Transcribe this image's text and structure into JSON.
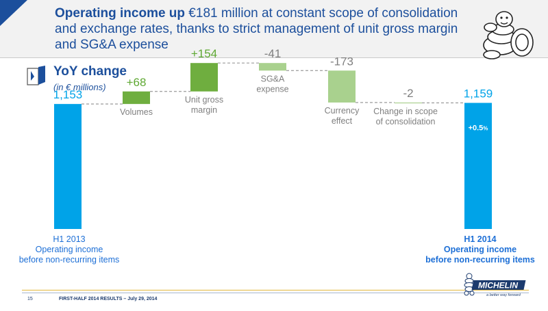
{
  "header": {
    "title_strong": "Operating income up",
    "title_rest": " €181 million at constant scope of consolidation and exchange rates, thanks to strict management of unit gross margin and SG&A expense"
  },
  "section": {
    "title": "YoY change",
    "subtitle": "(in € millions)"
  },
  "bottom_labels": {
    "h1_2013": [
      "H1 2013",
      "Operating income",
      "before non-recurring items"
    ],
    "h1_2014": [
      "H1 2014",
      "Operating income",
      "before non-recurring items"
    ]
  },
  "footer": {
    "page_number": "15",
    "text": "FIRST-HALF 2014 RESULTS – July 29, 2014"
  },
  "logo": {
    "name": "MICHELIN",
    "tagline": "a better way forward"
  },
  "colors": {
    "brand_blue": "#1c4f9c",
    "bar_blue": "#00a3e8",
    "green_dark": "#6fae3f",
    "green_light": "#a9d18e",
    "value_green": "#5ea832",
    "value_gray": "#7f7f7f",
    "label_gray": "#7f7f7f",
    "label_blue": "#1d6fd6"
  },
  "chart_data": {
    "type": "bar",
    "subtype": "waterfall",
    "categories": [
      "H1 2013",
      "Volumes",
      "Unit gross margin",
      "SG&A expense",
      "Currency effect",
      "Change in scope of consolidation",
      "H1 2014"
    ],
    "category_labels": [
      [],
      [
        "Volumes"
      ],
      [
        "Unit gross",
        "margin"
      ],
      [
        "SG&A",
        "expense"
      ],
      [
        "Currency",
        "effect"
      ],
      [
        "Change in scope",
        "of consolidation"
      ],
      []
    ],
    "values": [
      1153,
      68,
      154,
      -41,
      -173,
      -2,
      1159
    ],
    "value_labels": [
      "1,153",
      "+68",
      "+154",
      "-41",
      "-173",
      "-2",
      "1,159"
    ],
    "bar_kind": [
      "total",
      "increase",
      "increase",
      "decrease",
      "decrease",
      "decrease",
      "total"
    ],
    "annotation": {
      "category": "H1 2014",
      "text": "+0.5",
      "unit": "%"
    }
  }
}
